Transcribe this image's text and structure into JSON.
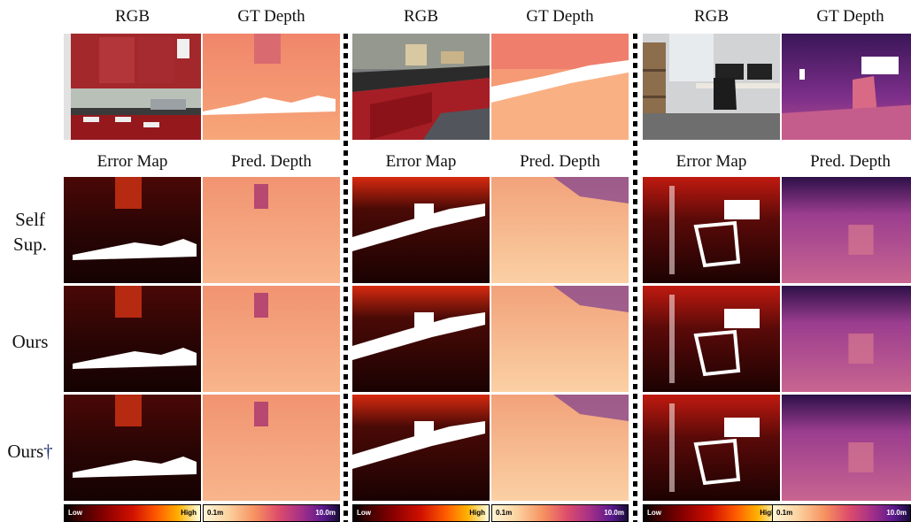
{
  "headers": {
    "top": [
      "RGB",
      "GT Depth",
      "RGB",
      "GT Depth",
      "RGB",
      "GT Depth"
    ],
    "mid": [
      "Error Map",
      "Pred. Depth",
      "Error Map",
      "Pred. Depth",
      "Error Map",
      "Pred. Depth"
    ]
  },
  "rows": [
    {
      "label_line1": "Self",
      "label_line2": "Sup."
    },
    {
      "label": "Ours"
    },
    {
      "label": "Ours",
      "mark": "†"
    }
  ],
  "colorbars": {
    "error": {
      "low": "Low",
      "high": "High"
    },
    "depth": {
      "min": "0.1m",
      "max": "10.0m"
    }
  },
  "colors": {
    "depth_near": "#fde6c0",
    "depth_mid": "#f3855f",
    "depth_far": "#3a1255",
    "error_low": "#000000",
    "error_high": "#ffffe0"
  }
}
